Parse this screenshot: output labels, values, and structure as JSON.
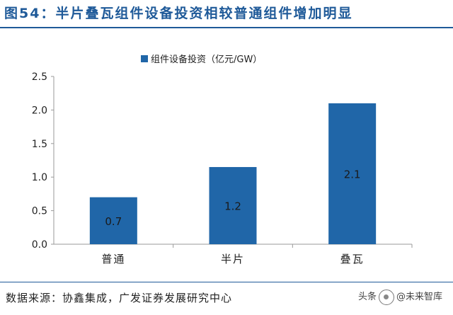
{
  "figure": {
    "title": "图54：半片叠瓦组件设备投资相较普通组件增加明显",
    "source": "数据来源：协鑫集成，广发证券发展研究中心",
    "watermark": {
      "prefix": "头条",
      "name": "@未来智库"
    }
  },
  "colors": {
    "bar": "#2066a8",
    "title": "#1f5a99",
    "axis": "#9a9a9a",
    "label_inside": "#1a1a1a"
  },
  "chart_data": {
    "type": "bar",
    "categories": [
      "普通",
      "半片",
      "叠瓦"
    ],
    "series": [
      {
        "name": "组件设备投资（亿元/GW）",
        "values": [
          0.7,
          1.15,
          2.1
        ]
      }
    ],
    "data_labels": [
      "0.7",
      "1.2",
      "2.1"
    ],
    "yticks": [
      "0.0",
      "0.5",
      "1.0",
      "1.5",
      "2.0",
      "2.5"
    ],
    "ylim": [
      0,
      2.5
    ],
    "grid": false,
    "legend": "top-center"
  }
}
